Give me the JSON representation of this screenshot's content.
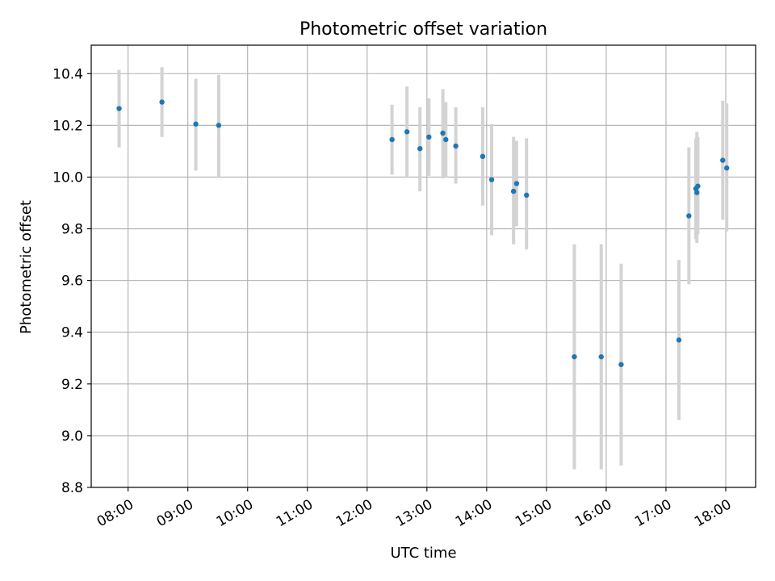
{
  "chart_data": {
    "type": "scatter",
    "title": "Photometric offset variation",
    "xlabel": "UTC time",
    "ylabel": "Photometric offset",
    "x_tick_labels": [
      "08:00",
      "09:00",
      "10:00",
      "11:00",
      "12:00",
      "13:00",
      "14:00",
      "15:00",
      "16:00",
      "17:00",
      "18:00"
    ],
    "x_tick_hours": [
      8,
      9,
      10,
      11,
      12,
      13,
      14,
      15,
      16,
      17,
      18
    ],
    "y_tick_labels": [
      "8.8",
      "9.0",
      "9.2",
      "9.4",
      "9.6",
      "9.8",
      "10.0",
      "10.2",
      "10.4"
    ],
    "y_tick_values": [
      8.8,
      9.0,
      9.2,
      9.4,
      9.6,
      9.8,
      10.0,
      10.2,
      10.4
    ],
    "xlim": [
      "07:23",
      "18:30"
    ],
    "ylim": [
      8.8,
      10.51
    ],
    "grid": true,
    "point_color": "#1f77b4",
    "errorbar_color": "#d3d3d3",
    "points": [
      {
        "t": "07:51",
        "y": 10.265,
        "lo": 10.115,
        "hi": 10.415
      },
      {
        "t": "08:34",
        "y": 10.29,
        "lo": 10.155,
        "hi": 10.425
      },
      {
        "t": "09:08",
        "y": 10.205,
        "lo": 10.025,
        "hi": 10.38
      },
      {
        "t": "09:31",
        "y": 10.2,
        "lo": 10.0,
        "hi": 10.395
      },
      {
        "t": "12:25",
        "y": 10.145,
        "lo": 10.01,
        "hi": 10.28
      },
      {
        "t": "12:40",
        "y": 10.175,
        "lo": 10.0,
        "hi": 10.35
      },
      {
        "t": "12:53",
        "y": 10.11,
        "lo": 9.945,
        "hi": 10.27
      },
      {
        "t": "13:02",
        "y": 10.155,
        "lo": 10.005,
        "hi": 10.305
      },
      {
        "t": "13:16",
        "y": 10.17,
        "lo": 9.995,
        "hi": 10.34
      },
      {
        "t": "13:19",
        "y": 10.145,
        "lo": 10.0,
        "hi": 10.29
      },
      {
        "t": "13:29",
        "y": 10.12,
        "lo": 9.975,
        "hi": 10.27
      },
      {
        "t": "13:56",
        "y": 10.08,
        "lo": 9.89,
        "hi": 10.27
      },
      {
        "t": "14:05",
        "y": 9.99,
        "lo": 9.775,
        "hi": 10.205
      },
      {
        "t": "14:27",
        "y": 9.945,
        "lo": 9.74,
        "hi": 10.155
      },
      {
        "t": "14:30",
        "y": 9.975,
        "lo": 9.81,
        "hi": 10.14
      },
      {
        "t": "14:40",
        "y": 9.93,
        "lo": 9.72,
        "hi": 10.15
      },
      {
        "t": "15:28",
        "y": 9.305,
        "lo": 8.87,
        "hi": 9.74
      },
      {
        "t": "15:55",
        "y": 9.305,
        "lo": 8.87,
        "hi": 9.74
      },
      {
        "t": "16:15",
        "y": 9.275,
        "lo": 8.885,
        "hi": 9.665
      },
      {
        "t": "17:13",
        "y": 9.37,
        "lo": 9.06,
        "hi": 9.68
      },
      {
        "t": "17:23",
        "y": 9.85,
        "lo": 9.585,
        "hi": 10.115
      },
      {
        "t": "17:30",
        "y": 9.955,
        "lo": 9.76,
        "hi": 10.15
      },
      {
        "t": "17:31",
        "y": 9.94,
        "lo": 9.745,
        "hi": 10.175
      },
      {
        "t": "17:32",
        "y": 9.965,
        "lo": 9.78,
        "hi": 10.155
      },
      {
        "t": "17:57",
        "y": 10.065,
        "lo": 9.835,
        "hi": 10.295
      },
      {
        "t": "18:01",
        "y": 10.035,
        "lo": 9.79,
        "hi": 10.285
      }
    ]
  }
}
